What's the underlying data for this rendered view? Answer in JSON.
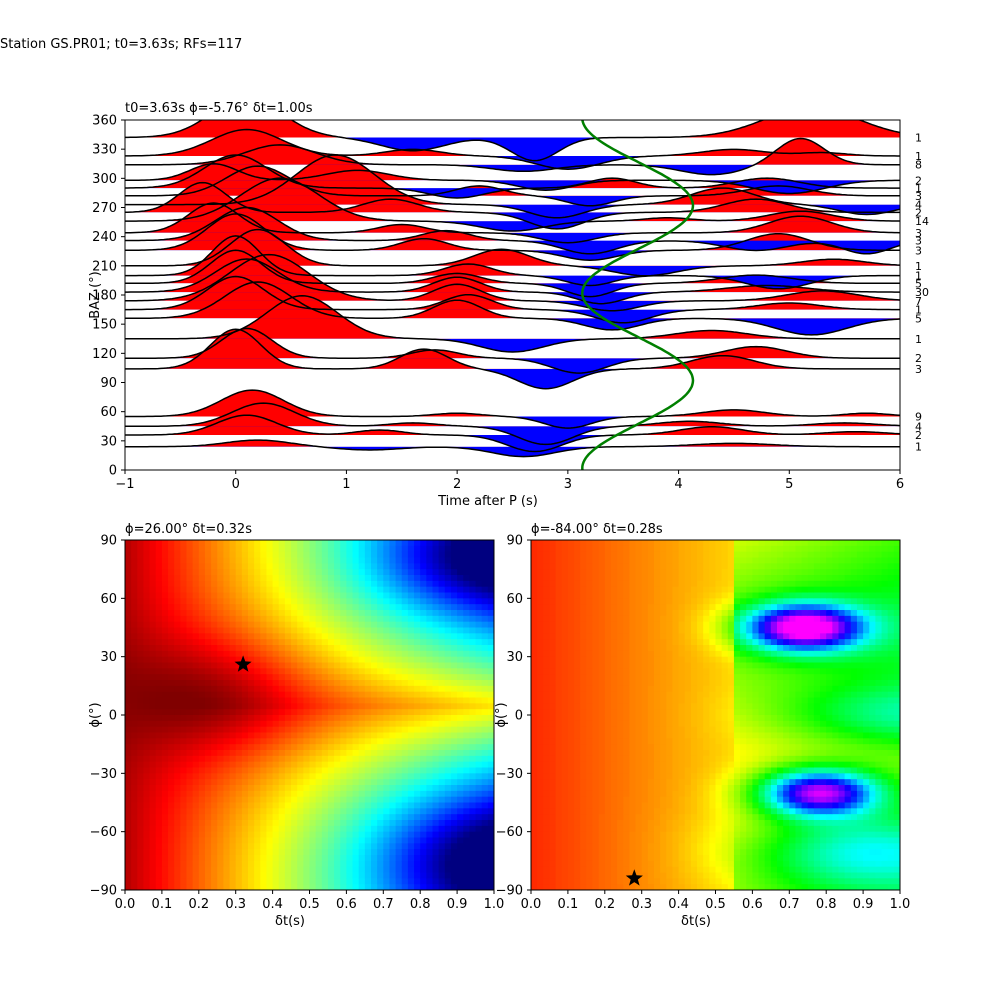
{
  "figure": {
    "suptitle": "Station GS.PR01; t0=3.63s; RFs=117"
  },
  "chart_data": [
    {
      "type": "line",
      "panel": "receiver-functions",
      "title": "t0=3.63s ϕ=-5.76° δt=1.00s",
      "xlabel": "Time after P (s)",
      "ylabel": "BAZ (°)",
      "xlim": [
        -1,
        6
      ],
      "ylim": [
        0,
        360
      ],
      "xticks": [
        "−1",
        "0",
        "1",
        "2",
        "3",
        "4",
        "5",
        "6"
      ],
      "yticks": [
        "0",
        "30",
        "60",
        "90",
        "120",
        "150",
        "180",
        "210",
        "240",
        "270",
        "300",
        "330",
        "360"
      ],
      "grid": false,
      "fill_positive": "#ff0000",
      "fill_negative": "#0000ff",
      "trace_color": "#000000",
      "model_curve": {
        "color": "#008000",
        "center_s": 3.63,
        "amplitude_s": 0.5,
        "period_deg": 180,
        "phase_deg": 272
      },
      "traces": [
        {
          "baz": 24,
          "count": "1",
          "peaks": [
            [
              0.2,
              0.2,
              0.4
            ],
            [
              1.2,
              -0.1,
              0.4
            ],
            [
              2.6,
              -0.3,
              0.4
            ],
            [
              4.5,
              0.1,
              0.5
            ]
          ]
        },
        {
          "baz": 36,
          "count": "2",
          "peaks": [
            [
              0.1,
              0.6,
              0.38
            ],
            [
              1.3,
              0.15,
              0.3
            ],
            [
              2.7,
              -0.5,
              0.35
            ],
            [
              4.3,
              0.25,
              0.4
            ],
            [
              5.6,
              0.1,
              0.4
            ]
          ]
        },
        {
          "baz": 45,
          "count": "4",
          "peaks": [
            [
              0.25,
              0.7,
              0.4
            ],
            [
              1.6,
              0.1,
              0.3
            ],
            [
              2.8,
              -0.55,
              0.35
            ],
            [
              4.1,
              0.15,
              0.4
            ],
            [
              5.5,
              0.1,
              0.4
            ]
          ]
        },
        {
          "baz": 55,
          "count": "9",
          "peaks": [
            [
              0.15,
              0.8,
              0.4
            ],
            [
              2.0,
              0.1,
              0.3
            ],
            [
              3.0,
              -0.35,
              0.3
            ],
            [
              4.5,
              0.2,
              0.4
            ],
            [
              5.7,
              0.1,
              0.3
            ]
          ]
        },
        {
          "baz": 104,
          "count": "3",
          "peaks": [
            [
              0.0,
              1.2,
              0.32
            ],
            [
              1.7,
              0.6,
              0.3
            ],
            [
              2.8,
              -0.6,
              0.35
            ],
            [
              4.4,
              0.4,
              0.4
            ]
          ]
        },
        {
          "baz": 115,
          "count": "2",
          "peaks": [
            [
              0.1,
              0.9,
              0.32
            ],
            [
              1.8,
              0.25,
              0.3
            ],
            [
              3.1,
              -0.45,
              0.35
            ],
            [
              4.7,
              0.35,
              0.4
            ]
          ]
        },
        {
          "baz": 135,
          "count": "1",
          "peaks": [
            [
              0.6,
              1.3,
              0.45
            ],
            [
              2.5,
              -0.4,
              0.4
            ],
            [
              4.3,
              0.25,
              0.45
            ]
          ]
        },
        {
          "baz": 156,
          "count": "5",
          "peaks": [
            [
              0.2,
              1.1,
              0.42
            ],
            [
              2.0,
              0.55,
              0.3
            ],
            [
              3.4,
              -0.35,
              0.35
            ],
            [
              5.2,
              -0.5,
              0.45
            ]
          ]
        },
        {
          "baz": 165,
          "count": "1",
          "peaks": [
            [
              0.0,
              1.0,
              0.36
            ],
            [
              2.1,
              0.45,
              0.3
            ],
            [
              3.5,
              -0.4,
              0.35
            ],
            [
              5.0,
              0.2,
              0.4
            ]
          ]
        },
        {
          "baz": 174,
          "count": "7",
          "peaks": [
            [
              0.3,
              1.4,
              0.5
            ],
            [
              2.0,
              0.5,
              0.3
            ],
            [
              3.4,
              -0.3,
              0.35
            ],
            [
              5.3,
              0.3,
              0.45
            ]
          ]
        },
        {
          "baz": 183,
          "count": "30",
          "peaks": [
            [
              0.1,
              1.0,
              0.4
            ],
            [
              2.0,
              0.45,
              0.3
            ],
            [
              3.3,
              -0.35,
              0.3
            ],
            [
              4.8,
              0.2,
              0.5
            ]
          ]
        },
        {
          "baz": 192,
          "count": "5",
          "peaks": [
            [
              0.0,
              1.0,
              0.32
            ],
            [
              2.0,
              0.3,
              0.3
            ],
            [
              3.2,
              -0.4,
              0.3
            ],
            [
              4.7,
              0.25,
              0.45
            ]
          ]
        },
        {
          "baz": 200,
          "count": "1",
          "peaks": [
            [
              0.0,
              1.2,
              0.3
            ],
            [
              2.1,
              0.35,
              0.3
            ],
            [
              3.2,
              -0.3,
              0.3
            ],
            [
              4.9,
              -0.4,
              0.4
            ]
          ]
        },
        {
          "baz": 210,
          "count": "1",
          "peaks": [
            [
              0.2,
              1.1,
              0.35
            ],
            [
              2.4,
              0.5,
              0.35
            ],
            [
              3.7,
              -0.3,
              0.4
            ],
            [
              5.4,
              0.2,
              0.4
            ]
          ]
        },
        {
          "baz": 226,
          "count": "3",
          "peaks": [
            [
              0.0,
              1.1,
              0.36
            ],
            [
              1.7,
              0.35,
              0.3
            ],
            [
              3.2,
              -0.3,
              0.35
            ],
            [
              4.9,
              0.5,
              0.4
            ]
          ]
        },
        {
          "baz": 236,
          "count": "3",
          "peaks": [
            [
              0.1,
              1.0,
              0.4
            ],
            [
              1.9,
              0.3,
              0.3
            ],
            [
              3.2,
              -0.4,
              0.35
            ],
            [
              4.7,
              -0.3,
              0.4
            ],
            [
              5.7,
              -0.4,
              0.3
            ]
          ]
        },
        {
          "baz": 244,
          "count": "3",
          "peaks": [
            [
              -0.2,
              0.9,
              0.32
            ],
            [
              1.5,
              0.25,
              0.3
            ],
            [
              3.0,
              -0.3,
              0.35
            ],
            [
              5.1,
              0.5,
              0.4
            ]
          ]
        },
        {
          "baz": 256,
          "count": "14",
          "peaks": [
            [
              0.4,
              1.3,
              0.5
            ],
            [
              2.5,
              -0.3,
              0.4
            ],
            [
              3.9,
              0.1,
              0.3
            ],
            [
              5.1,
              0.3,
              0.4
            ]
          ]
        },
        {
          "baz": 265,
          "count": "2",
          "peaks": [
            [
              -0.3,
              0.9,
              0.3
            ],
            [
              1.4,
              0.4,
              0.35
            ],
            [
              2.9,
              -0.5,
              0.35
            ],
            [
              4.7,
              0.4,
              0.4
            ]
          ]
        },
        {
          "baz": 273,
          "count": "4",
          "peaks": [
            [
              0.9,
              1.5,
              0.5
            ],
            [
              2.9,
              -0.4,
              0.35
            ],
            [
              4.4,
              0.5,
              0.4
            ],
            [
              5.7,
              -0.3,
              0.35
            ]
          ]
        },
        {
          "baz": 282,
          "count": "3",
          "peaks": [
            [
              0.2,
              0.9,
              0.4
            ],
            [
              2.2,
              0.3,
              0.3
            ],
            [
              3.2,
              -0.3,
              0.3
            ],
            [
              4.9,
              0.3,
              0.4
            ]
          ]
        },
        {
          "baz": 290,
          "count": "1",
          "peaks": [
            [
              0.0,
              1.0,
              0.4
            ],
            [
              2.0,
              -0.3,
              0.35
            ],
            [
              3.4,
              0.3,
              0.3
            ],
            [
              4.8,
              0.3,
              0.4
            ]
          ]
        },
        {
          "baz": 298,
          "count": "2",
          "peaks": [
            [
              -0.2,
              0.5,
              0.3
            ],
            [
              1.1,
              0.3,
              0.4
            ],
            [
              2.8,
              -0.3,
              0.35
            ],
            [
              5.0,
              -0.4,
              0.45
            ]
          ]
        },
        {
          "baz": 314,
          "count": "8",
          "peaks": [
            [
              0.4,
              0.6,
              0.45
            ],
            [
              2.6,
              -0.2,
              0.4
            ],
            [
              4.3,
              -0.3,
              0.4
            ],
            [
              5.1,
              0.8,
              0.3
            ]
          ]
        },
        {
          "baz": 323,
          "count": "1",
          "peaks": [
            [
              0.1,
              0.8,
              0.45
            ],
            [
              1.6,
              0.2,
              0.35
            ],
            [
              3.0,
              -0.4,
              0.4
            ],
            [
              4.5,
              0.2,
              0.4
            ],
            [
              5.3,
              0.1,
              0.3
            ]
          ]
        },
        {
          "baz": 342,
          "count": "1",
          "peaks": [
            [
              0.1,
              1.2,
              0.45
            ],
            [
              1.6,
              -0.4,
              0.4
            ],
            [
              2.7,
              -0.7,
              0.3
            ],
            [
              5.2,
              0.9,
              0.6
            ]
          ]
        }
      ]
    },
    {
      "type": "heatmap",
      "panel": "grid-search-left",
      "title": "ϕ=26.00° δt=0.32s",
      "xlabel": "δt(s)",
      "ylabel": "ϕ(°)",
      "xlim": [
        0,
        1
      ],
      "ylim": [
        -90,
        90
      ],
      "xticks": [
        "0.0",
        "0.1",
        "0.2",
        "0.3",
        "0.4",
        "0.5",
        "0.6",
        "0.7",
        "0.8",
        "0.9",
        "1.0"
      ],
      "yticks": [
        "−90",
        "−60",
        "−30",
        "0",
        "30",
        "60",
        "90"
      ],
      "colormap": "jet",
      "best_phi": 26.0,
      "best_dt": 0.32,
      "marker": "star"
    },
    {
      "type": "heatmap",
      "panel": "grid-search-right",
      "title": "ϕ=-84.00° δt=0.28s",
      "xlabel": "δt(s)",
      "ylabel": "ϕ(°)",
      "xlim": [
        0,
        1
      ],
      "ylim": [
        -90,
        90
      ],
      "xticks": [
        "0.0",
        "0.1",
        "0.2",
        "0.3",
        "0.4",
        "0.5",
        "0.6",
        "0.7",
        "0.8",
        "0.9",
        "1.0"
      ],
      "yticks": [
        "−90",
        "−60",
        "−30",
        "0",
        "30",
        "60",
        "90"
      ],
      "colormap": "gist_rainbow",
      "best_phi": -84.0,
      "best_dt": 0.28,
      "marker": "star"
    }
  ]
}
